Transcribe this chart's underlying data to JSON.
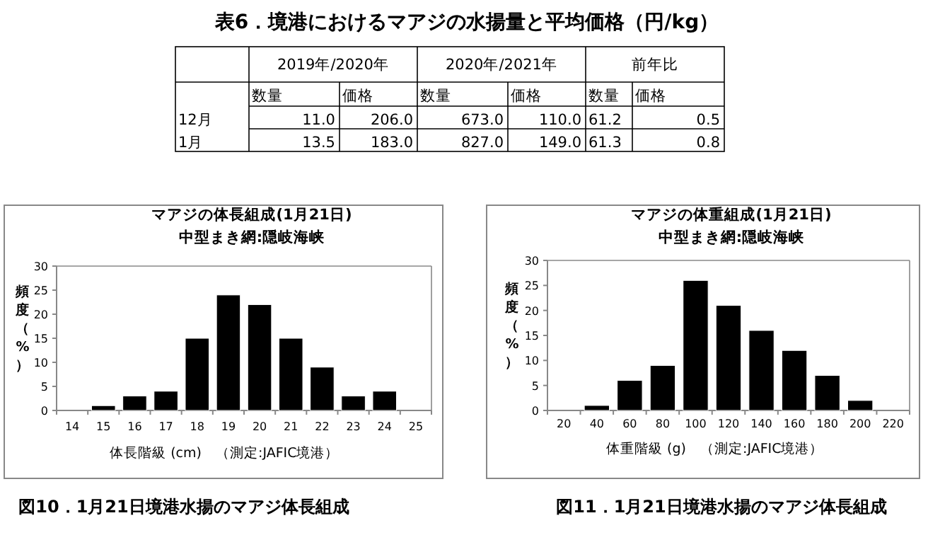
{
  "chart_data": [
    {
      "type": "other",
      "title": "表6．境港におけるマアジの水揚量と平均価格（円/kg）",
      "annotations": [
        "2019年/2020年",
        "2020年/2021年",
        "前年比",
        "数量",
        "価格",
        "数量",
        "価格",
        "数量",
        "価格",
        "12月",
        "11.0",
        "206.0",
        "673.0",
        "110.0",
        "61.2",
        "0.5",
        "1月",
        "13.5",
        "183.0",
        "827.0",
        "149.0",
        "61.3",
        "0.8"
      ]
    },
    {
      "type": "bar",
      "title": "マアジの体長組成(1月21日)",
      "subtitle": "中型まき網:隠岐海峡",
      "xlabel": "体長階級 (cm)",
      "ylabel": "頻度（%）",
      "annotations": [
        "（測定:JAFIC境港）",
        "図10．1月21日境港水揚のマアジ体長組成"
      ],
      "categories": [
        "14",
        "15",
        "16",
        "17",
        "18",
        "19",
        "20",
        "21",
        "22",
        "23",
        "24",
        "25"
      ],
      "values": [
        null,
        1,
        3,
        4,
        15,
        24,
        22,
        15,
        9,
        3,
        4,
        null
      ],
      "color": "#000000",
      "ylim": [
        0,
        30
      ],
      "yticks": [
        0,
        5,
        10,
        15,
        20,
        25,
        30
      ]
    },
    {
      "type": "bar",
      "title": "マアジの体重組成(1月21日)",
      "subtitle": "中型まき網:隠岐海峡",
      "xlabel": "体重階級 (g)",
      "ylabel": "頻度（%）",
      "annotations": [
        "（測定:JAFIC境港）",
        "図11．1月21日境港水揚のマアジ体長組成"
      ],
      "categories": [
        "20",
        "40",
        "60",
        "80",
        "100",
        "120",
        "140",
        "160",
        "180",
        "200",
        "220"
      ],
      "values": [
        null,
        1,
        6,
        9,
        26,
        21,
        16,
        12,
        7,
        2,
        null
      ],
      "color": "#000000",
      "ylim": [
        0,
        30
      ],
      "yticks": [
        0,
        5,
        10,
        15,
        20,
        25,
        30
      ]
    }
  ]
}
